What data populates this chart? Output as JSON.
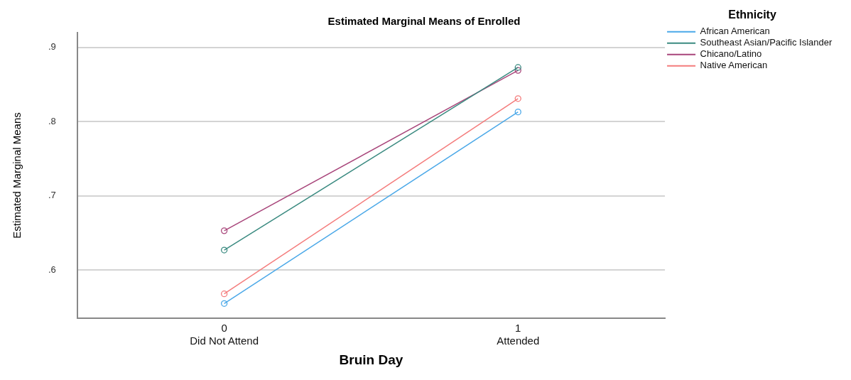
{
  "chart_data": {
    "type": "line",
    "title": "Estimated Marginal Means of Enrolled",
    "xlabel": "Bruin Day",
    "ylabel": "Estimated Marginal Means",
    "legend_title": "Ethnicity",
    "categories": [
      "0\nDid Not Attend",
      "1\nAttended"
    ],
    "series": [
      {
        "name": "African American",
        "color": "#4aa8e8",
        "values": [
          0.555,
          0.813
        ]
      },
      {
        "name": "Southeast Asian/Pacific Islander",
        "color": "#3a8a80",
        "values": [
          0.627,
          0.873
        ]
      },
      {
        "name": "Chicano/Latino",
        "color": "#a8457a",
        "values": [
          0.653,
          0.869
        ]
      },
      {
        "name": "Native American",
        "color": "#f47c7c",
        "values": [
          0.568,
          0.831
        ]
      }
    ],
    "ylim": [
      0.535,
      0.92
    ],
    "yticks": [
      {
        "value": 0.6,
        "label": ".6"
      },
      {
        "value": 0.7,
        "label": ".7"
      },
      {
        "value": 0.8,
        "label": ".8"
      },
      {
        "value": 0.9,
        "label": ".9"
      }
    ],
    "grid": "y",
    "legend": "top right",
    "marker": "circle",
    "line_style": "solid"
  }
}
